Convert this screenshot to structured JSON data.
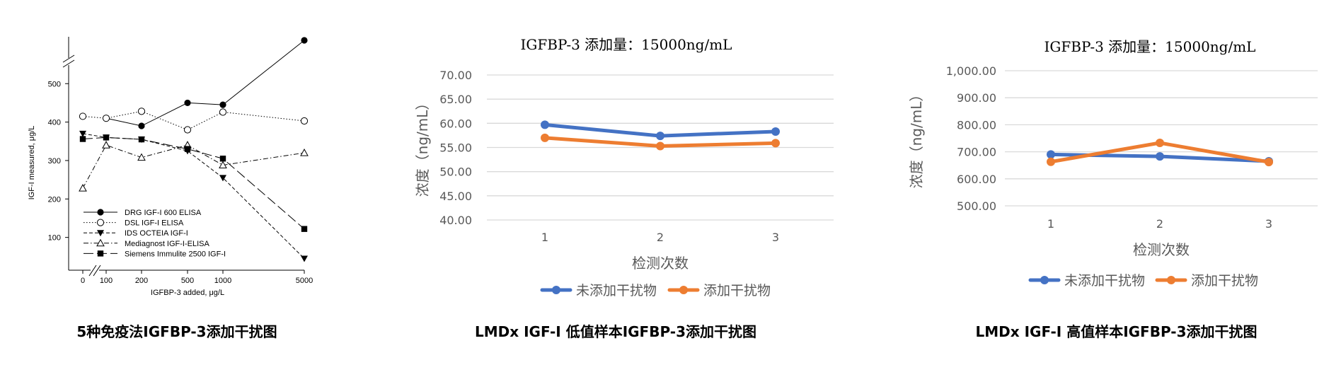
{
  "charts": [
    {
      "caption": "5种免疫法IGFBP-3添加干扰图",
      "chart_data": {
        "type": "line",
        "title": "",
        "xlabel": "IGFBP-3 added, μg/L",
        "ylabel": "IGF-I measured, μg/L",
        "x_ticks": [
          "0",
          "100",
          "200",
          "500",
          "1000",
          "5000"
        ],
        "y_ticks": [
          "100",
          "200",
          "300",
          "400",
          "500"
        ],
        "ylim": [
          0,
          550
        ],
        "axis_break": true,
        "legend_position": "bottom-left",
        "series": [
          {
            "name": "DRG IGF-I 600 ELISA",
            "marker": "filled-circle",
            "line": "solid",
            "x": [
              100,
              200,
              500,
              1000,
              5000
            ],
            "values": [
              410,
              390,
              450,
              445,
              640
            ]
          },
          {
            "name": "DSL IGF-I ELISA",
            "marker": "open-circle",
            "line": "dotted",
            "x": [
              0,
              100,
              200,
              500,
              1000,
              5000
            ],
            "values": [
              415,
              410,
              428,
              380,
              426,
              403
            ]
          },
          {
            "name": "IDS OCTEIA IGF-I",
            "marker": "filled-triangle-down",
            "line": "dashed",
            "x": [
              0,
              100,
              200,
              500,
              1000,
              5000
            ],
            "values": [
              370,
              360,
              355,
              325,
              255,
              45
            ]
          },
          {
            "name": "Mediagnost IGF-I-ELISA",
            "marker": "open-triangle",
            "line": "dash-dot",
            "x": [
              0,
              100,
              200,
              500,
              1000,
              5000
            ],
            "values": [
              228,
              340,
              308,
              340,
              288,
              320
            ]
          },
          {
            "name": "Siemens Immulite 2500 IGF-I",
            "marker": "filled-square",
            "line": "long-dash",
            "x": [
              0,
              100,
              200,
              500,
              1000,
              5000
            ],
            "values": [
              356,
              360,
              355,
              330,
              305,
              122
            ]
          }
        ]
      }
    },
    {
      "caption": "LMDx IGF-Ⅰ 低值样本IGFBP-3添加干扰图",
      "chart_data": {
        "type": "line",
        "title": "IGFBP-3 添加量：15000ng/mL",
        "xlabel": "检测次数",
        "ylabel": "浓度（ng/mL）",
        "categories": [
          "1",
          "2",
          "3"
        ],
        "y_ticks": [
          "40.00",
          "45.00",
          "50.00",
          "55.00",
          "60.00",
          "65.00",
          "70.00"
        ],
        "ylim": [
          40,
          70
        ],
        "grid": true,
        "legend_position": "bottom",
        "series": [
          {
            "name": "未添加干扰物",
            "color": "#4472C4",
            "values": [
              59.7,
              57.4,
              58.3
            ]
          },
          {
            "name": "添加干扰物",
            "color": "#ED7D31",
            "values": [
              57.0,
              55.3,
              55.9
            ]
          }
        ]
      }
    },
    {
      "caption": "LMDx IGF-Ⅰ 高值样本IGFBP-3添加干扰图",
      "chart_data": {
        "type": "line",
        "title": "IGFBP-3 添加量：15000ng/mL",
        "xlabel": "检测次数",
        "ylabel": "浓度（ng/mL）",
        "categories": [
          "1",
          "2",
          "3"
        ],
        "y_ticks": [
          "500.00",
          "600.00",
          "700.00",
          "800.00",
          "900.00",
          "1,000.00"
        ],
        "ylim": [
          500,
          1000
        ],
        "grid": true,
        "legend_position": "bottom",
        "series": [
          {
            "name": "未添加干扰物",
            "color": "#4472C4",
            "values": [
              690,
              683,
              665
            ]
          },
          {
            "name": "添加干扰物",
            "color": "#ED7D31",
            "values": [
              663,
              733,
              662
            ]
          }
        ]
      }
    }
  ]
}
